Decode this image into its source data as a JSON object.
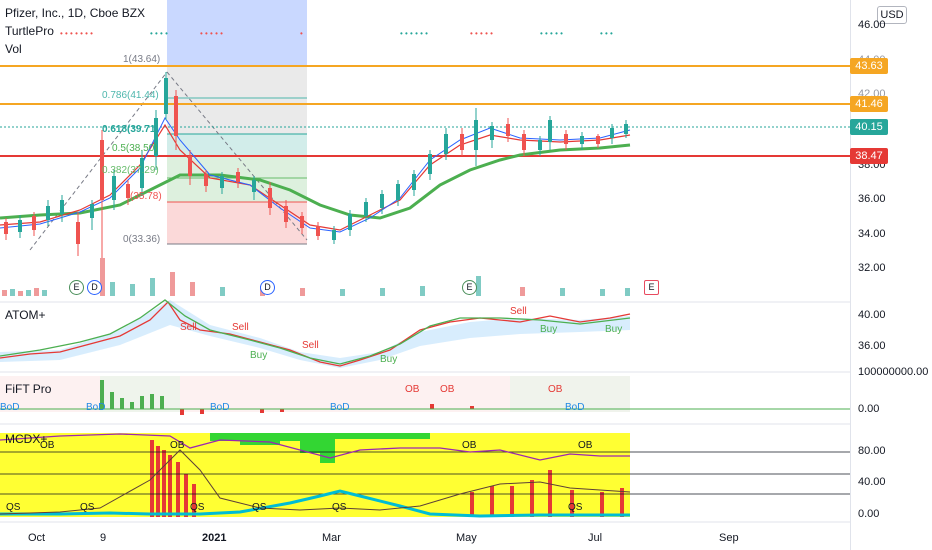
{
  "header": {
    "symbol_line": "Pfizer, Inc., 1D, Cboe BZX",
    "indicator_1": "TurtlePro",
    "indicator_2": "Vol"
  },
  "currency_button": "USD",
  "price_axis": {
    "labels": [
      "46.00",
      "44.00",
      "42.00",
      "38.00",
      "36.00",
      "34.00",
      "32.00"
    ],
    "tags": [
      {
        "value": "43.63",
        "color": "#f5a623"
      },
      {
        "value": "41.46",
        "color": "#f5a623"
      },
      {
        "value": "40.15",
        "color": "#26a69a"
      },
      {
        "value": "38.47",
        "color": "#e53935"
      }
    ]
  },
  "fib_levels": [
    "1(43.64)",
    "0.786(41.44)",
    "0.618(39.71)",
    "0.5(38.50)",
    "0.382(37.29)",
    "(35.78)",
    "0(33.36)"
  ],
  "event_markers": [
    "E",
    "D",
    "D",
    "E",
    "E"
  ],
  "panes": {
    "atom": {
      "title": "ATOM+",
      "labels": [
        "40.00",
        "36.00"
      ]
    },
    "fift": {
      "title": "FiFT Pro",
      "labels": [
        "100000000.00",
        "0.00"
      ]
    },
    "mcdx": {
      "title": "MCDX+",
      "labels": [
        "80.00",
        "40.00",
        "0.00"
      ]
    }
  },
  "signal_labels": {
    "sell": "Sell",
    "buy": "Buy",
    "bod": "BoD",
    "ob": "OB",
    "qs": "QS"
  },
  "time_axis": [
    "Oct",
    "9",
    "2021",
    "Mar",
    "May",
    "Jul",
    "Sep"
  ],
  "colors": {
    "bull": "#26a69a",
    "bear": "#ef5350",
    "fib_blue": "#2962ff",
    "orange": "#f5a623",
    "support": "#e53935",
    "mcdx_yellow": "#ffff33",
    "mcdx_green": "#4caf50"
  }
}
